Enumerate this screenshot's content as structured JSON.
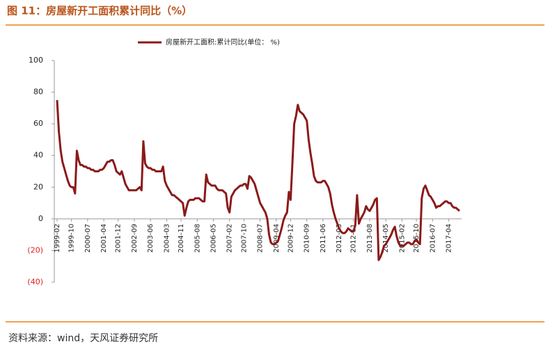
{
  "header": {
    "title": "图 11：房屋新开工面积累计同比（%）"
  },
  "footer": {
    "source": "资料来源：wind，天风证券研究所"
  },
  "chart_data": {
    "type": "line",
    "categories": [
      "1999-02",
      null,
      null,
      null,
      null,
      null,
      null,
      null,
      "1999-10",
      null,
      null,
      null,
      null,
      null,
      null,
      null,
      null,
      "2000-07",
      null,
      null,
      null,
      null,
      null,
      null,
      null,
      null,
      "2001-04",
      null,
      null,
      null,
      null,
      null,
      null,
      null,
      "2001-12",
      null,
      null,
      null,
      null,
      null,
      null,
      null,
      null,
      "2002-09",
      null,
      null,
      null,
      null,
      null,
      null,
      null,
      null,
      "2003-06",
      null,
      null,
      null,
      null,
      null,
      null,
      null,
      null,
      "2004-03",
      null,
      null,
      null,
      null,
      null,
      null,
      null,
      "2004-11",
      null,
      null,
      null,
      null,
      null,
      null,
      null,
      null,
      "2005-08",
      null,
      null,
      null,
      null,
      null,
      null,
      null,
      null,
      "2006-05",
      null,
      null,
      null,
      null,
      null,
      null,
      null,
      null,
      "2007-02",
      null,
      null,
      null,
      null,
      null,
      null,
      null,
      "2007-10",
      null,
      null,
      null,
      null,
      null,
      null,
      null,
      null,
      "2008-07",
      null,
      null,
      null,
      null,
      null,
      null,
      null,
      null,
      "2009-04",
      null,
      null,
      null,
      null,
      null,
      null,
      null,
      "2009-12",
      null,
      null,
      null,
      null,
      null,
      null,
      null,
      null,
      "2010-09",
      null,
      null,
      null,
      null,
      null,
      null,
      null,
      null,
      "2011-06",
      null,
      null,
      null,
      null,
      null,
      null,
      null,
      null,
      "2012-03",
      null,
      null,
      null,
      null,
      null,
      null,
      null,
      "2012-11",
      null,
      null,
      null,
      null,
      null,
      null,
      null,
      null,
      "2013-08",
      null,
      null,
      null,
      null,
      null,
      null,
      null,
      null,
      "2014-05",
      null,
      null,
      null,
      null,
      null,
      null,
      null,
      null,
      "2015-02",
      null,
      null,
      null,
      null,
      null,
      null,
      null,
      "2015-10",
      null,
      null,
      null,
      null,
      null,
      null,
      null,
      null,
      "2016-07",
      null,
      null,
      null,
      null,
      null,
      null,
      null,
      null,
      "2017-04",
      null,
      null,
      null,
      null,
      null,
      null
    ],
    "series": [
      {
        "name": "房屋新开工面积:累计同比(单位： %)",
        "color": "#8b1a1a",
        "values": [
          75,
          55,
          43,
          36,
          32,
          28,
          24,
          21,
          20,
          20,
          16,
          43,
          37,
          34,
          34,
          33,
          33,
          32,
          32,
          31,
          31,
          30,
          30,
          30,
          31,
          31,
          32,
          34,
          36,
          36,
          37,
          37,
          34,
          30,
          29,
          28,
          30,
          26,
          22,
          20,
          18,
          18,
          18,
          18,
          18,
          19,
          20,
          18,
          49,
          35,
          33,
          32,
          32,
          31,
          31,
          30,
          30,
          30,
          30,
          33,
          24,
          21,
          19,
          17,
          15,
          15,
          14,
          13,
          12,
          11,
          10,
          2,
          7,
          11,
          12,
          12,
          12,
          13,
          13,
          13,
          12,
          11,
          11,
          28,
          23,
          22,
          21,
          21,
          21,
          19,
          18,
          18,
          18,
          17,
          16,
          7,
          4,
          14,
          16,
          18,
          19,
          20,
          21,
          21,
          22,
          22,
          19,
          27,
          26,
          24,
          22,
          18,
          14,
          10,
          8,
          6,
          4,
          0,
          -10,
          -15,
          -16,
          -16,
          -15,
          -14,
          -10,
          -6,
          -1,
          2,
          4,
          17,
          12,
          35,
          60,
          65,
          72,
          68,
          67,
          66,
          64,
          62,
          50,
          42,
          35,
          27,
          24,
          23,
          23,
          23,
          24,
          24,
          22,
          20,
          16,
          9,
          4,
          0,
          -3,
          -6,
          -8,
          -9,
          -9,
          -8,
          -6,
          -7,
          -8,
          -8,
          -4,
          15,
          -3,
          0,
          2,
          4,
          8,
          6,
          5,
          7,
          9,
          12,
          13,
          -26,
          -24,
          -21,
          -17,
          -16,
          -14,
          -12,
          -10,
          -7,
          -5,
          -11,
          -15,
          -17,
          -17,
          -17,
          -16,
          -15,
          -15,
          -16,
          -16,
          -14,
          -13,
          -15,
          -16,
          13,
          19,
          21,
          18,
          15,
          14,
          12,
          10,
          7,
          8,
          8,
          9,
          10,
          11,
          11,
          10,
          10,
          8,
          7,
          7,
          6,
          5
        ]
      }
    ],
    "ylim": [
      -40,
      100
    ],
    "yticks": [
      100,
      80,
      60,
      40,
      20,
      0,
      {
        "value": -20,
        "label": "(20)"
      },
      {
        "value": -40,
        "label": "(40)"
      }
    ],
    "negative_label_color": "#e02020",
    "legend": "top"
  }
}
